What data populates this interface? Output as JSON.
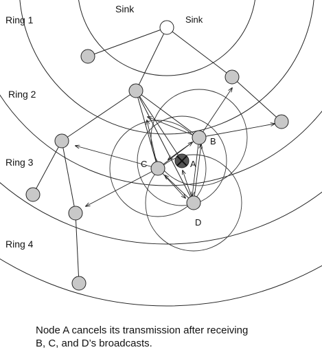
{
  "sink_title": "Sink",
  "sink_label": "Sink",
  "rings": [
    "Ring 1",
    "Ring 2",
    "Ring 3",
    "Ring 4"
  ],
  "nodes": {
    "a": "A",
    "b": "B",
    "c": "C",
    "d": "D"
  },
  "caption": [
    "Node A cancels its transmission after receiving",
    "B, C, and D’s broadcasts."
  ]
}
